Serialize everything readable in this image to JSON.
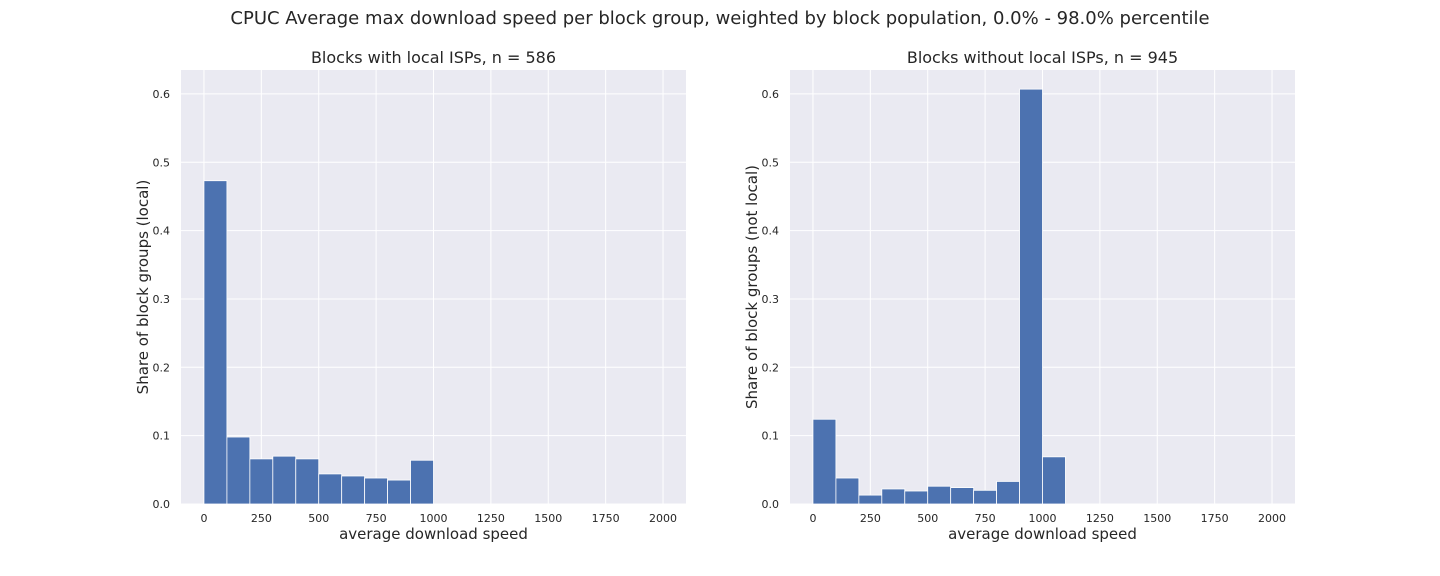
{
  "figure": {
    "suptitle": "CPUC Average max download speed per block group, weighted by block population, 0.0% - 98.0% percentile"
  },
  "colors": {
    "bar": "#4c72b0",
    "panel_bg": "#eaeaf2",
    "grid": "#ffffff",
    "text": "#262626"
  },
  "chart_data": [
    {
      "type": "bar",
      "title": "Blocks with local ISPs, n = 586",
      "xlabel": "average download speed",
      "ylabel": "Share of block groups (local)",
      "xlim": [
        -100,
        2100
      ],
      "ylim": [
        0,
        0.635
      ],
      "xticks": [
        0,
        250,
        500,
        750,
        1000,
        1250,
        1500,
        1750,
        2000
      ],
      "yticks": [
        0.0,
        0.1,
        0.2,
        0.3,
        0.4,
        0.5,
        0.6
      ],
      "bin_width": 100,
      "bin_starts": [
        0,
        100,
        200,
        300,
        400,
        500,
        600,
        700,
        800,
        900
      ],
      "values": [
        0.473,
        0.098,
        0.066,
        0.07,
        0.066,
        0.044,
        0.041,
        0.038,
        0.035,
        0.064
      ],
      "grid": true,
      "legend": "none"
    },
    {
      "type": "bar",
      "title": "Blocks without local ISPs, n = 945",
      "xlabel": "average download speed",
      "ylabel": "Share of block groups (not local)",
      "xlim": [
        -100,
        2100
      ],
      "ylim": [
        0,
        0.635
      ],
      "xticks": [
        0,
        250,
        500,
        750,
        1000,
        1250,
        1500,
        1750,
        2000
      ],
      "yticks": [
        0.0,
        0.1,
        0.2,
        0.3,
        0.4,
        0.5,
        0.6
      ],
      "bin_width": 100,
      "bin_starts": [
        0,
        100,
        200,
        300,
        400,
        500,
        600,
        700,
        800,
        900,
        1000
      ],
      "values": [
        0.124,
        0.038,
        0.013,
        0.022,
        0.019,
        0.026,
        0.024,
        0.02,
        0.033,
        0.607,
        0.069
      ],
      "grid": true,
      "legend": "none"
    }
  ]
}
